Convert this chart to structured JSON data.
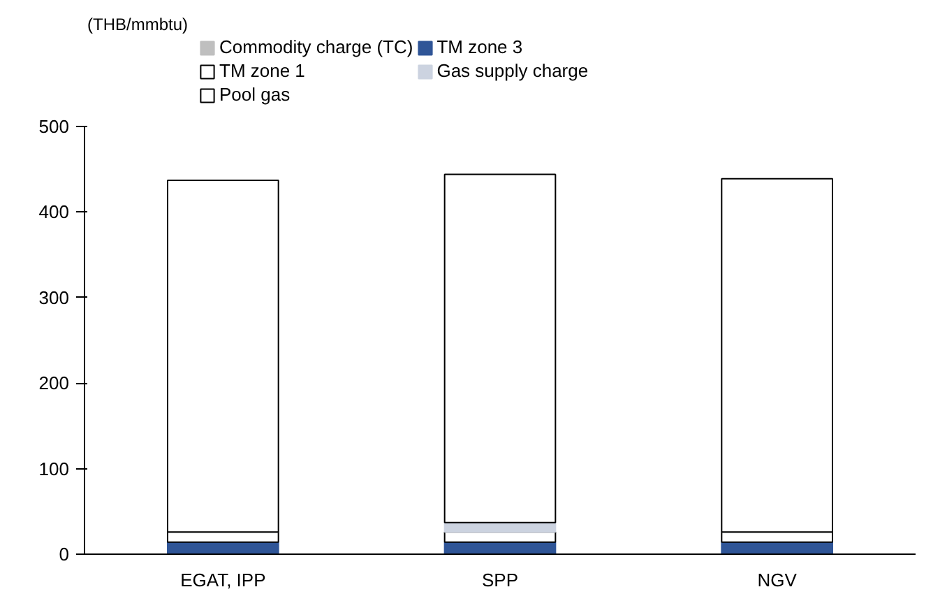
{
  "chart_data": {
    "type": "bar",
    "stacked": true,
    "ylabel": "(THB/mmbtu)",
    "categories": [
      "EGAT, IPP",
      "SPP",
      "NGV"
    ],
    "series": [
      {
        "name": "Commodity charge (TC)",
        "color": "#bfbfbf",
        "values": [
          0,
          0,
          0
        ]
      },
      {
        "name": "TM zone 3",
        "color": "#2f5597",
        "values": [
          14,
          14,
          14
        ]
      },
      {
        "name": "TM zone 1",
        "color": "#ffffff",
        "values": [
          12,
          12,
          12
        ]
      },
      {
        "name": "Gas supply charge",
        "color": "#ccd3e0",
        "values": [
          0,
          11,
          0
        ]
      },
      {
        "name": "Pool gas",
        "color": "#ffffff",
        "values": [
          411,
          407,
          413
        ]
      }
    ],
    "ylim": [
      0,
      500
    ],
    "yticks": [
      0,
      100,
      200,
      300,
      400,
      500
    ],
    "grid": false,
    "legend": "top"
  }
}
